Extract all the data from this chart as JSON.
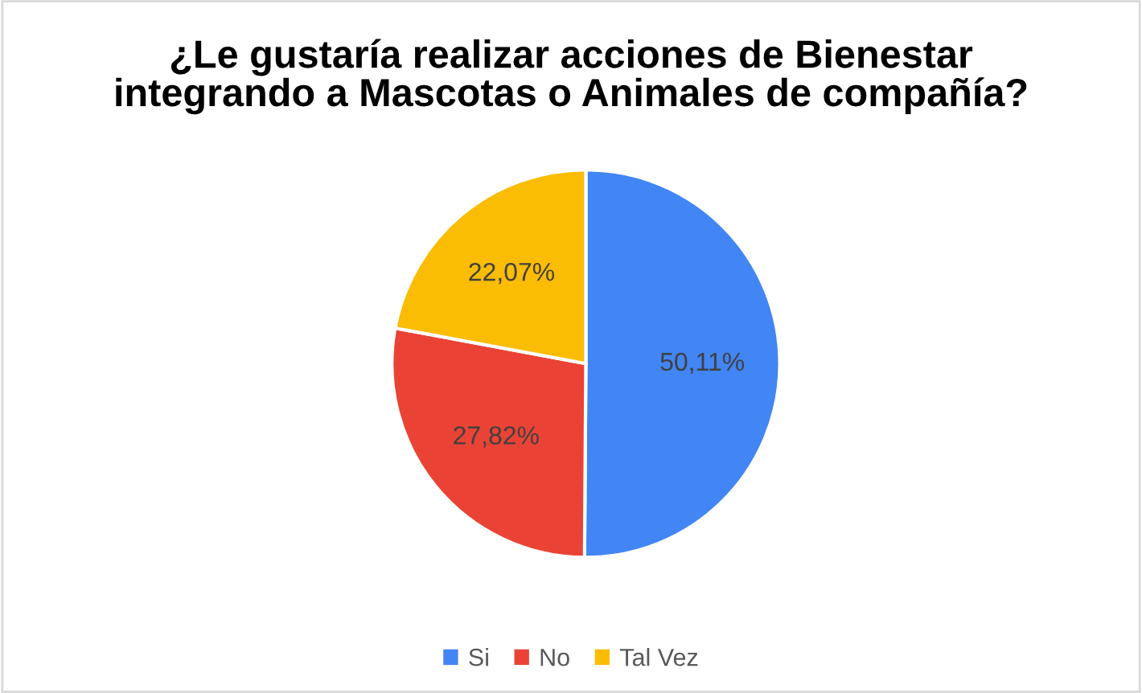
{
  "chart_data": {
    "type": "pie",
    "title": "¿Le gustaría realizar acciones de Bienestar\nintegrando a Mascotas o Animales de compañía?",
    "categories": [
      "Si",
      "No",
      "Tal Vez"
    ],
    "values": [
      50.11,
      27.82,
      22.07
    ],
    "value_labels": [
      "50,11%",
      "27,82%",
      "22,07%"
    ],
    "colors": [
      "#4285f4",
      "#ea4335",
      "#fbbc04"
    ],
    "legend": "bottom"
  }
}
